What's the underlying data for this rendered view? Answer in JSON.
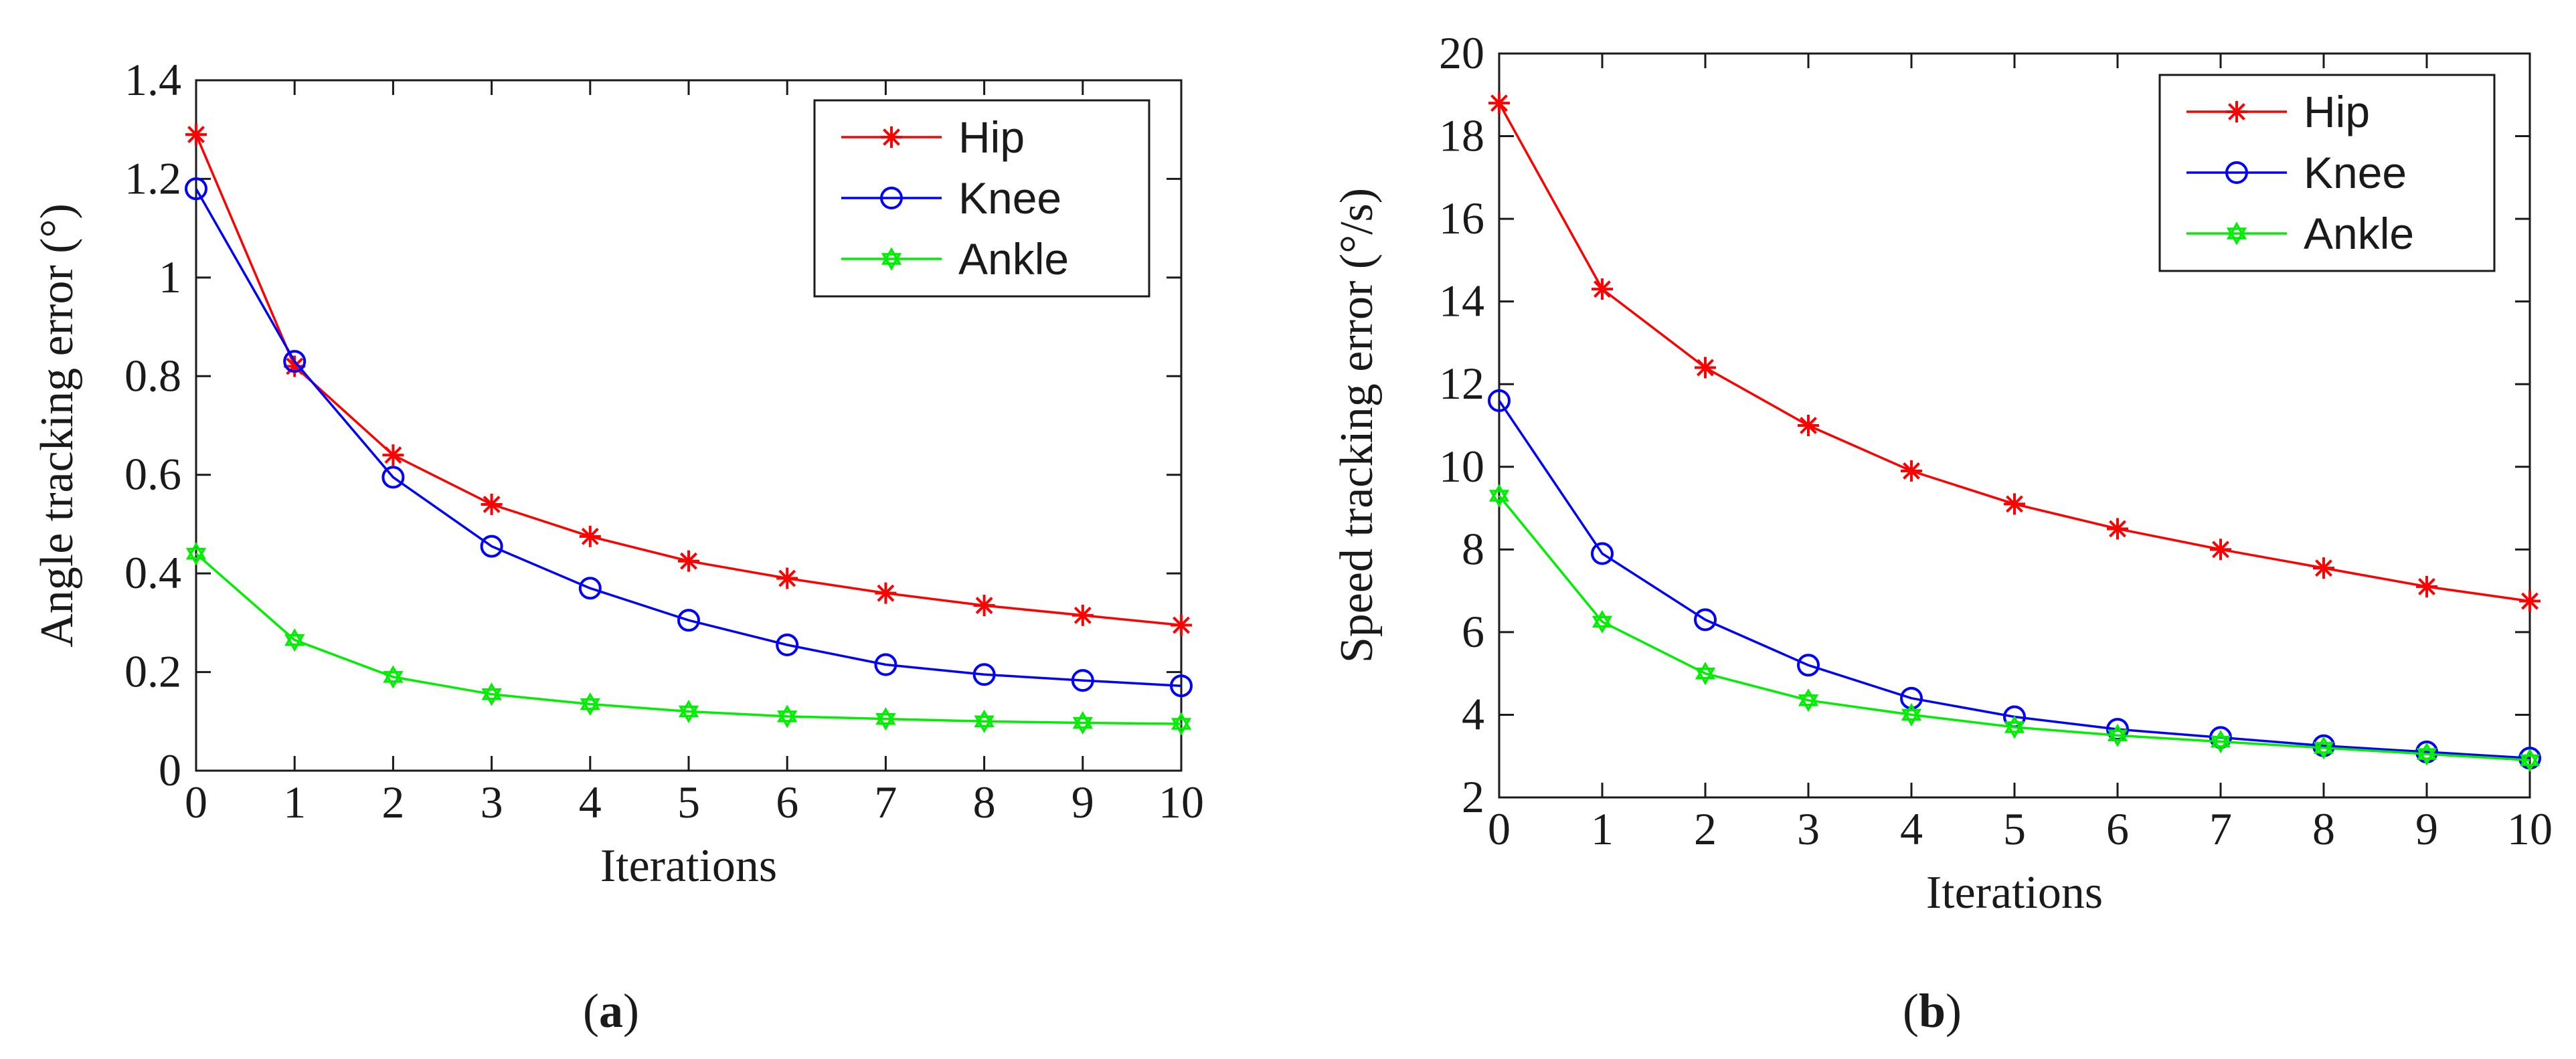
{
  "chart_data": [
    {
      "id": "a",
      "type": "line",
      "caption": "a",
      "xlabel": "Iterations",
      "ylabel": "Angle tracking error (°)",
      "xlim": [
        0,
        10
      ],
      "ylim": [
        0,
        1.4
      ],
      "x": [
        0,
        1,
        2,
        3,
        4,
        5,
        6,
        7,
        8,
        9,
        10
      ],
      "xticks": [
        "0",
        "1",
        "2",
        "3",
        "4",
        "5",
        "6",
        "7",
        "8",
        "9",
        "10"
      ],
      "yticks": [
        0,
        0.2,
        0.4,
        0.6,
        0.8,
        1,
        1.2,
        1.4
      ],
      "ytick_labels": [
        "0",
        "0.2",
        "0.4",
        "0.6",
        "0.8",
        "1",
        "1.2",
        "1.4"
      ],
      "legend_position": "top-right",
      "series": [
        {
          "name": "Hip",
          "color": "#ff0000",
          "marker": "asterisk",
          "values": [
            1.29,
            0.82,
            0.64,
            0.54,
            0.475,
            0.425,
            0.39,
            0.36,
            0.335,
            0.315,
            0.295
          ]
        },
        {
          "name": "Knee",
          "color": "#0000ff",
          "marker": "circle",
          "values": [
            1.18,
            0.83,
            0.595,
            0.455,
            0.37,
            0.305,
            0.255,
            0.215,
            0.195,
            0.183,
            0.172
          ]
        },
        {
          "name": "Ankle",
          "color": "#00ee00",
          "marker": "hexagram",
          "values": [
            0.44,
            0.265,
            0.19,
            0.155,
            0.135,
            0.12,
            0.11,
            0.105,
            0.1,
            0.097,
            0.095
          ]
        }
      ]
    },
    {
      "id": "b",
      "type": "line",
      "caption": "b",
      "xlabel": "Iterations",
      "ylabel": "Speed tracking error (°/s)",
      "xlim": [
        0,
        10
      ],
      "ylim": [
        2,
        20
      ],
      "x": [
        0,
        1,
        2,
        3,
        4,
        5,
        6,
        7,
        8,
        9,
        10
      ],
      "xticks": [
        "0",
        "1",
        "2",
        "3",
        "4",
        "5",
        "6",
        "7",
        "8",
        "9",
        "10"
      ],
      "yticks": [
        2,
        4,
        6,
        8,
        10,
        12,
        14,
        16,
        18,
        20
      ],
      "ytick_labels": [
        "2",
        "4",
        "6",
        "8",
        "10",
        "12",
        "14",
        "16",
        "18",
        "20"
      ],
      "legend_position": "top-right",
      "series": [
        {
          "name": "Hip",
          "color": "#ff0000",
          "marker": "asterisk",
          "values": [
            18.8,
            14.3,
            12.4,
            11.0,
            9.9,
            9.1,
            8.5,
            8.0,
            7.55,
            7.1,
            6.75
          ]
        },
        {
          "name": "Knee",
          "color": "#0000ff",
          "marker": "circle",
          "values": [
            11.6,
            7.9,
            6.3,
            5.2,
            4.4,
            3.95,
            3.65,
            3.45,
            3.25,
            3.1,
            2.95
          ]
        },
        {
          "name": "Ankle",
          "color": "#00ee00",
          "marker": "hexagram",
          "values": [
            9.3,
            6.25,
            5.0,
            4.35,
            4.0,
            3.7,
            3.5,
            3.35,
            3.2,
            3.05,
            2.9
          ]
        }
      ]
    }
  ]
}
